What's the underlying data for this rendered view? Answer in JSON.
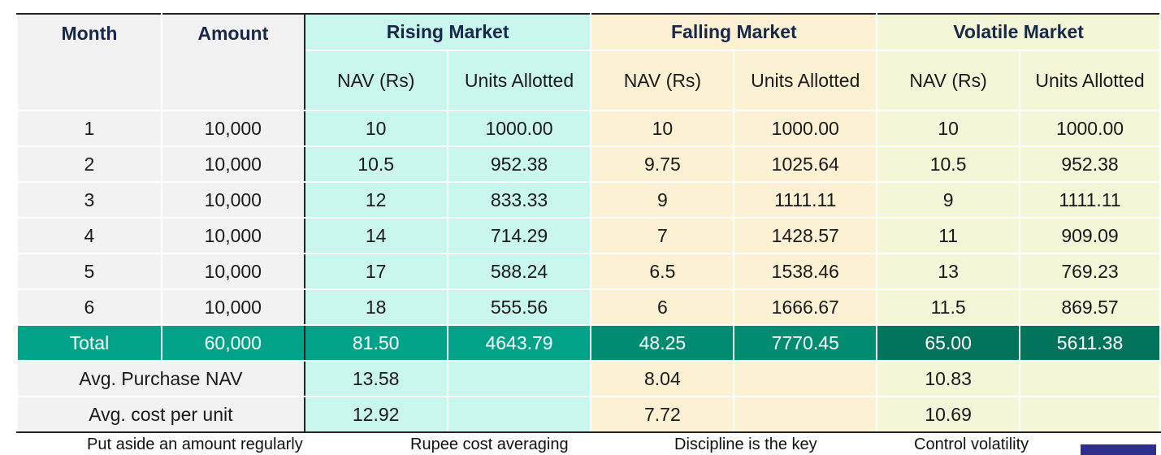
{
  "table": {
    "headers": {
      "month": "Month",
      "amount": "Amount",
      "rising": "Rising Market",
      "falling": "Falling Market",
      "volatile": "Volatile Market",
      "nav": "NAV (Rs)",
      "units": "Units Allotted"
    },
    "rows": [
      {
        "month": "1",
        "amount": "10,000",
        "r_nav": "10",
        "r_units": "1000.00",
        "f_nav": "10",
        "f_units": "1000.00",
        "v_nav": "10",
        "v_units": "1000.00"
      },
      {
        "month": "2",
        "amount": "10,000",
        "r_nav": "10.5",
        "r_units": "952.38",
        "f_nav": "9.75",
        "f_units": "1025.64",
        "v_nav": "10.5",
        "v_units": "952.38"
      },
      {
        "month": "3",
        "amount": "10,000",
        "r_nav": "12",
        "r_units": "833.33",
        "f_nav": "9",
        "f_units": "1111.11",
        "v_nav": "9",
        "v_units": "1111.11"
      },
      {
        "month": "4",
        "amount": "10,000",
        "r_nav": "14",
        "r_units": "714.29",
        "f_nav": "7",
        "f_units": "1428.57",
        "v_nav": "11",
        "v_units": "909.09"
      },
      {
        "month": "5",
        "amount": "10,000",
        "r_nav": "17",
        "r_units": "588.24",
        "f_nav": "6.5",
        "f_units": "1538.46",
        "v_nav": "13",
        "v_units": "769.23"
      },
      {
        "month": "6",
        "amount": "10,000",
        "r_nav": "18",
        "r_units": "555.56",
        "f_nav": "6",
        "f_units": "1666.67",
        "v_nav": "11.5",
        "v_units": "869.57"
      }
    ],
    "total": {
      "label": "Total",
      "amount": "60,000",
      "r_nav": "81.50",
      "r_units": "4643.79",
      "f_nav": "48.25",
      "f_units": "7770.45",
      "v_nav": "65.00",
      "v_units": "5611.38"
    },
    "avg_purchase_nav": {
      "label": "Avg. Purchase NAV",
      "rising": "13.58",
      "falling": "8.04",
      "volatile": "10.83"
    },
    "avg_cost_per_unit": {
      "label": "Avg. cost per unit",
      "rising": "12.92",
      "falling": "7.72",
      "volatile": "10.69"
    }
  },
  "footer": {
    "items": [
      "Put aside an amount regularly",
      "Rupee cost averaging",
      "Discipline is the key",
      "Control volatility"
    ]
  },
  "colors": {
    "total_green": "#00a387",
    "rising_bg": "#c9f7ed",
    "falling_bg": "#fdf1d3",
    "volatile_bg": "#f3f7d8",
    "header_text": "#17284a"
  }
}
